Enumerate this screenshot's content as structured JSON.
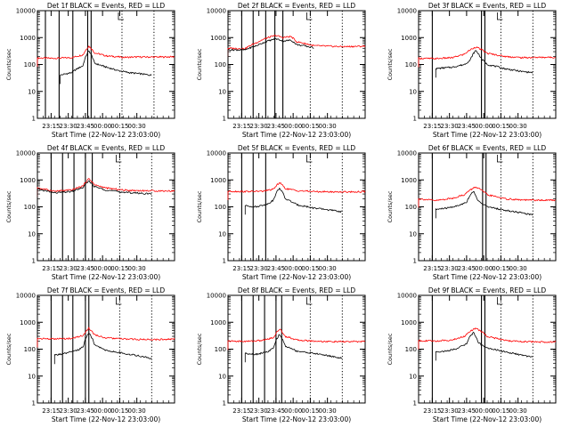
{
  "figure": {
    "background": "#ffffff"
  },
  "colors": {
    "events": "#000000",
    "lld": "#ff0000",
    "axis": "#000000"
  },
  "chart_data": [
    {
      "type": "line",
      "title": "Det 1f BLACK = Events, RED = LLD",
      "xlabel": "Start Time (22-Nov-12 23:03:00)",
      "ylabel": "Counts/sec",
      "yscale": "log",
      "ylim": [
        1,
        10000
      ],
      "yticks": [
        "1",
        "10",
        "100",
        "1000",
        "10000"
      ],
      "xlim_min": [
        0,
        120
      ],
      "xtick_minutes": [
        12,
        27,
        42,
        57,
        72,
        87
      ],
      "xtick_labels": [
        "23:15",
        "23:30",
        "23:45",
        "00:00",
        "00:15",
        "00:30"
      ],
      "solid_markers_min": [
        7,
        19,
        31,
        44,
        47
      ],
      "dotted_markers_min": [
        74,
        102
      ],
      "grid": false,
      "legend": "none",
      "series": [
        {
          "x_min": [
            0,
            15,
            30,
            40,
            45,
            50,
            60,
            75,
            90,
            110,
            120
          ],
          "values": [
            175,
            170,
            180,
            230,
            480,
            270,
            210,
            185,
            190,
            190,
            195
          ]
        },
        {
          "x_min": [
            20,
            30,
            35,
            40,
            45,
            50,
            60,
            70,
            80,
            90,
            100
          ],
          "values": [
            40,
            50,
            70,
            90,
            320,
            110,
            80,
            60,
            50,
            45,
            40
          ]
        }
      ]
    },
    {
      "type": "line",
      "title": "Det 2f BLACK = Events, RED = LLD",
      "xlabel": "Start Time (22-Nov-12 23:03:00)",
      "ylabel": "Counts/sec",
      "yscale": "log",
      "ylim": [
        1,
        10000
      ],
      "yticks": [
        "1",
        "10",
        "100",
        "1000",
        "10000"
      ],
      "xlim_min": [
        0,
        120
      ],
      "xtick_minutes": [
        12,
        27,
        42,
        57,
        72,
        87
      ],
      "xtick_labels": [
        "23:15",
        "23:30",
        "23:45",
        "00:00",
        "00:15",
        "00:30"
      ],
      "solid_markers_min": [
        12,
        22,
        33,
        41,
        48
      ],
      "dotted_markers_min": [
        72,
        100
      ],
      "grid": false,
      "legend": "none",
      "series": [
        {
          "x_min": [
            0,
            15,
            25,
            35,
            42,
            48,
            55,
            60,
            75,
            100,
            120
          ],
          "values": [
            400,
            390,
            650,
            1000,
            1200,
            1000,
            1100,
            700,
            500,
            460,
            480
          ]
        },
        {
          "x_min": [
            0,
            15,
            25,
            35,
            42,
            48,
            55,
            60,
            75
          ],
          "values": [
            350,
            350,
            500,
            750,
            900,
            750,
            800,
            550,
            420
          ]
        }
      ]
    },
    {
      "type": "line",
      "title": "Det 3f BLACK = Events, RED = LLD",
      "xlabel": "Start Time (22-Nov-12 23:03:00)",
      "ylabel": "Counts/sec",
      "yscale": "log",
      "ylim": [
        1,
        10000
      ],
      "yticks": [
        "1",
        "10",
        "100",
        "1000",
        "10000"
      ],
      "xlim_min": [
        0,
        120
      ],
      "xtick_minutes": [
        12,
        27,
        42,
        57,
        72,
        87
      ],
      "xtick_labels": [
        "23:15",
        "23:30",
        "23:45",
        "00:00",
        "00:15",
        "00:30"
      ],
      "solid_markers_min": [
        12,
        55,
        58
      ],
      "dotted_markers_min": [
        72,
        100
      ],
      "grid": false,
      "legend": "none",
      "series": [
        {
          "x_min": [
            0,
            15,
            30,
            40,
            50,
            60,
            75,
            90,
            110,
            120
          ],
          "values": [
            170,
            165,
            180,
            240,
            450,
            260,
            200,
            180,
            185,
            185
          ]
        },
        {
          "x_min": [
            15,
            30,
            40,
            45,
            50,
            55,
            60,
            75,
            90,
            100
          ],
          "values": [
            70,
            80,
            100,
            140,
            330,
            160,
            100,
            70,
            55,
            50
          ]
        }
      ]
    },
    {
      "type": "line",
      "title": "Det 4f BLACK = Events, RED = LLD",
      "xlabel": "Start Time (22-Nov-12 23:03:00)",
      "ylabel": "Counts/sec",
      "yscale": "log",
      "ylim": [
        1,
        10000
      ],
      "yticks": [
        "1",
        "10",
        "100",
        "1000",
        "10000"
      ],
      "xlim_min": [
        0,
        120
      ],
      "xtick_minutes": [
        12,
        27,
        42,
        57,
        72,
        87
      ],
      "xtick_labels": [
        "23:15",
        "23:30",
        "23:45",
        "00:00",
        "00:15",
        "00:30"
      ],
      "solid_markers_min": [
        12,
        22,
        32,
        42,
        48
      ],
      "dotted_markers_min": [
        72,
        100
      ],
      "grid": false,
      "legend": "none",
      "series": [
        {
          "x_min": [
            0,
            15,
            30,
            40,
            45,
            50,
            60,
            75,
            90,
            110,
            120
          ],
          "values": [
            500,
            380,
            420,
            600,
            1100,
            650,
            500,
            420,
            400,
            390,
            390
          ]
        },
        {
          "x_min": [
            0,
            15,
            30,
            40,
            45,
            50,
            60,
            75,
            90,
            100
          ],
          "values": [
            450,
            330,
            370,
            520,
            900,
            560,
            420,
            350,
            320,
            300
          ]
        }
      ]
    },
    {
      "type": "line",
      "title": "Det 5f BLACK = Events, RED = LLD",
      "xlabel": "Start Time (22-Nov-12 23:03:00)",
      "ylabel": "Counts/sec",
      "yscale": "log",
      "ylim": [
        1,
        10000
      ],
      "yticks": [
        "1",
        "10",
        "100",
        "1000",
        "10000"
      ],
      "xlim_min": [
        0,
        120
      ],
      "xtick_minutes": [
        12,
        27,
        42,
        57,
        72,
        87
      ],
      "xtick_labels": [
        "23:15",
        "23:30",
        "23:45",
        "00:00",
        "00:15",
        "00:30"
      ],
      "solid_markers_min": [
        12,
        22,
        33
      ],
      "dotted_markers_min": [
        72,
        100
      ],
      "grid": false,
      "legend": "none",
      "series": [
        {
          "x_min": [
            0,
            15,
            30,
            40,
            45,
            50,
            60,
            75,
            90,
            110,
            120
          ],
          "values": [
            380,
            370,
            380,
            450,
            800,
            480,
            400,
            370,
            360,
            360,
            370
          ]
        },
        {
          "x_min": [
            15,
            25,
            35,
            40,
            45,
            50,
            60,
            75,
            90,
            100
          ],
          "values": [
            110,
            100,
            130,
            180,
            500,
            200,
            120,
            90,
            75,
            65
          ]
        }
      ]
    },
    {
      "type": "line",
      "title": "Det 6f BLACK = Events, RED = LLD",
      "xlabel": "Start Time (22-Nov-12 23:03:00)",
      "ylabel": "Counts/sec",
      "yscale": "log",
      "ylim": [
        1,
        10000
      ],
      "yticks": [
        "1",
        "10",
        "100",
        "1000",
        "10000"
      ],
      "xlim_min": [
        0,
        120
      ],
      "xtick_minutes": [
        12,
        27,
        42,
        57,
        72,
        87
      ],
      "xtick_labels": [
        "23:15",
        "23:30",
        "23:45",
        "00:00",
        "00:15",
        "00:30"
      ],
      "solid_markers_min": [
        12,
        56,
        59
      ],
      "dotted_markers_min": [
        72,
        100
      ],
      "grid": false,
      "legend": "none",
      "series": [
        {
          "x_min": [
            0,
            15,
            30,
            40,
            50,
            60,
            75,
            90,
            110,
            120
          ],
          "values": [
            200,
            170,
            210,
            280,
            550,
            280,
            200,
            180,
            175,
            180
          ]
        },
        {
          "x_min": [
            15,
            25,
            35,
            42,
            48,
            52,
            60,
            75,
            90,
            100
          ],
          "values": [
            80,
            90,
            110,
            150,
            380,
            160,
            100,
            75,
            60,
            50
          ]
        }
      ]
    },
    {
      "type": "line",
      "title": "Det 7f BLACK = Events, RED = LLD",
      "xlabel": "Start Time (22-Nov-12 23:03:00)",
      "ylabel": "Counts/sec",
      "yscale": "log",
      "ylim": [
        1,
        10000
      ],
      "yticks": [
        "1",
        "10",
        "100",
        "1000",
        "10000"
      ],
      "xlim_min": [
        0,
        120
      ],
      "xtick_minutes": [
        12,
        27,
        42,
        57,
        72,
        87
      ],
      "xtick_labels": [
        "23:15",
        "23:30",
        "23:45",
        "00:00",
        "00:15",
        "00:30"
      ],
      "solid_markers_min": [
        12,
        22,
        31,
        42,
        45
      ],
      "dotted_markers_min": [
        72,
        100
      ],
      "grid": false,
      "legend": "none",
      "series": [
        {
          "x_min": [
            0,
            15,
            30,
            40,
            45,
            50,
            60,
            75,
            90,
            110,
            120
          ],
          "values": [
            250,
            240,
            250,
            320,
            600,
            340,
            260,
            240,
            230,
            230,
            240
          ]
        },
        {
          "x_min": [
            15,
            25,
            35,
            40,
            45,
            50,
            60,
            75,
            90,
            100
          ],
          "values": [
            60,
            70,
            90,
            120,
            400,
            140,
            90,
            70,
            55,
            45
          ]
        }
      ]
    },
    {
      "type": "line",
      "title": "Det 8f BLACK = Events, RED = LLD",
      "xlabel": "Start Time (22-Nov-12 23:03:00)",
      "ylabel": "Counts/sec",
      "yscale": "log",
      "ylim": [
        1,
        10000
      ],
      "yticks": [
        "1",
        "10",
        "100",
        "1000",
        "10000"
      ],
      "xlim_min": [
        0,
        120
      ],
      "xtick_minutes": [
        12,
        27,
        42,
        57,
        72,
        87
      ],
      "xtick_labels": [
        "23:15",
        "23:30",
        "23:45",
        "00:00",
        "00:15",
        "00:30"
      ],
      "solid_markers_min": [
        12,
        22,
        32,
        42,
        47
      ],
      "dotted_markers_min": [
        72,
        100
      ],
      "grid": false,
      "legend": "none",
      "series": [
        {
          "x_min": [
            0,
            15,
            30,
            40,
            45,
            50,
            60,
            75,
            90,
            110,
            120
          ],
          "values": [
            200,
            195,
            210,
            270,
            560,
            300,
            220,
            200,
            190,
            190,
            195
          ]
        },
        {
          "x_min": [
            15,
            25,
            35,
            40,
            45,
            50,
            60,
            75,
            90,
            100
          ],
          "values": [
            70,
            65,
            80,
            110,
            350,
            130,
            85,
            70,
            55,
            45
          ]
        }
      ]
    },
    {
      "type": "line",
      "title": "Det 9f BLACK = Events, RED = LLD",
      "xlabel": "Start Time (22-Nov-12 23:03:00)",
      "ylabel": "Counts/sec",
      "yscale": "log",
      "ylim": [
        1,
        10000
      ],
      "yticks": [
        "1",
        "10",
        "100",
        "1000",
        "10000"
      ],
      "xlim_min": [
        0,
        120
      ],
      "xtick_minutes": [
        12,
        27,
        42,
        57,
        72,
        87
      ],
      "xtick_labels": [
        "23:15",
        "23:30",
        "23:45",
        "00:00",
        "00:15",
        "00:30"
      ],
      "solid_markers_min": [
        12,
        55,
        58
      ],
      "dotted_markers_min": [
        72,
        100
      ],
      "grid": false,
      "legend": "none",
      "series": [
        {
          "x_min": [
            0,
            15,
            30,
            40,
            50,
            60,
            75,
            90,
            110,
            120
          ],
          "values": [
            210,
            200,
            220,
            300,
            600,
            300,
            210,
            190,
            185,
            190
          ]
        },
        {
          "x_min": [
            15,
            25,
            35,
            42,
            48,
            52,
            60,
            75,
            90,
            100
          ],
          "values": [
            80,
            85,
            110,
            160,
            420,
            170,
            110,
            80,
            60,
            50
          ]
        }
      ]
    }
  ]
}
